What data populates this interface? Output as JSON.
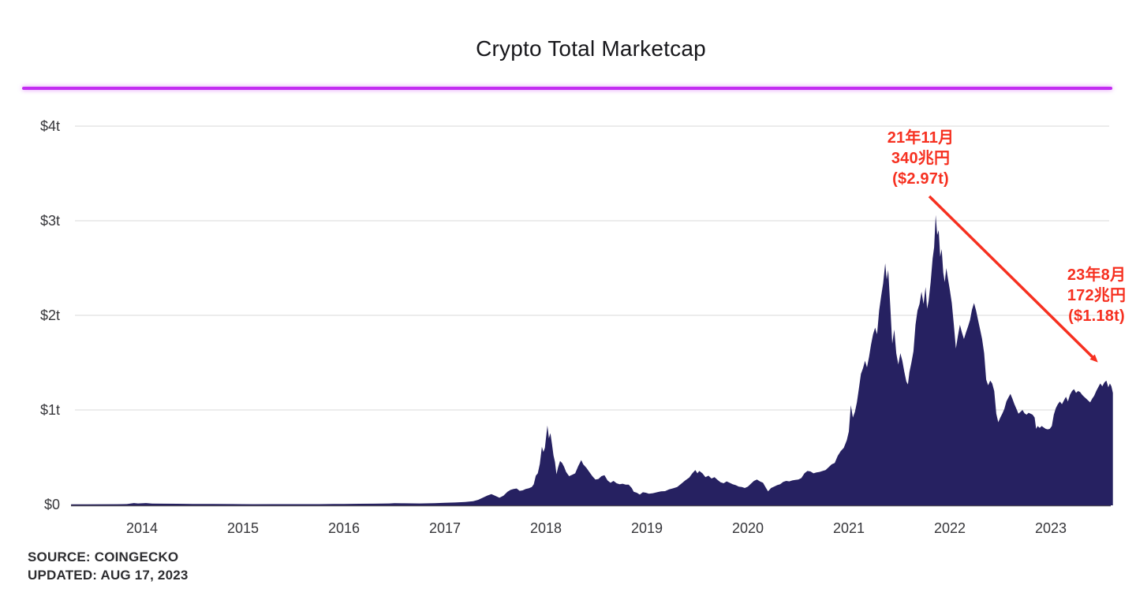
{
  "header": {
    "title": "Crypto Total Marketcap"
  },
  "footer": {
    "source": "SOURCE: COINGECKO",
    "updated": "UPDATED: AUG 17, 2023"
  },
  "chart_data": {
    "type": "area",
    "title": "Crypto Total Marketcap",
    "unit": "USD trillions",
    "x_range": [
      2013.3,
      2023.62
    ],
    "ylim": [
      0,
      4
    ],
    "grid": "horizontal",
    "y_ticks": {
      "labels": [
        "$0",
        "$1t",
        "$2t",
        "$3t",
        "$4t"
      ],
      "values": [
        0,
        1,
        2,
        3,
        4
      ]
    },
    "x_ticks": [
      2014,
      2015,
      2016,
      2017,
      2018,
      2019,
      2020,
      2021,
      2022,
      2023
    ],
    "colors": {
      "area": "#262161",
      "accent_line": "#c32cf2",
      "annotation": "#f63020",
      "gridline": "#ececec",
      "baseline": "#4e4954"
    },
    "annotations": [
      {
        "lines": [
          "21年11月",
          "340兆円",
          "($2.97t)"
        ]
      },
      {
        "lines": [
          "23年8月",
          "172兆円",
          "($1.18t)"
        ]
      }
    ],
    "series": [
      {
        "name": "Crypto total market cap ($ trillions)",
        "points": [
          [
            2013.3,
            0.001
          ],
          [
            2013.45,
            0.0012
          ],
          [
            2013.6,
            0.0015
          ],
          [
            2013.75,
            0.003
          ],
          [
            2013.85,
            0.005
          ],
          [
            2013.92,
            0.016
          ],
          [
            2013.96,
            0.012
          ],
          [
            2014.0,
            0.013
          ],
          [
            2014.04,
            0.016
          ],
          [
            2014.1,
            0.01
          ],
          [
            2014.2,
            0.009
          ],
          [
            2014.35,
            0.008
          ],
          [
            2014.5,
            0.007
          ],
          [
            2014.7,
            0.006
          ],
          [
            2014.9,
            0.005
          ],
          [
            2015.0,
            0.0045
          ],
          [
            2015.1,
            0.0035
          ],
          [
            2015.3,
            0.004
          ],
          [
            2015.5,
            0.004
          ],
          [
            2015.75,
            0.0045
          ],
          [
            2015.9,
            0.006
          ],
          [
            2016.0,
            0.007
          ],
          [
            2016.15,
            0.008
          ],
          [
            2016.3,
            0.009
          ],
          [
            2016.45,
            0.012
          ],
          [
            2016.5,
            0.014
          ],
          [
            2016.6,
            0.013
          ],
          [
            2016.75,
            0.012
          ],
          [
            2016.9,
            0.014
          ],
          [
            2017.0,
            0.018
          ],
          [
            2017.1,
            0.022
          ],
          [
            2017.2,
            0.027
          ],
          [
            2017.28,
            0.035
          ],
          [
            2017.33,
            0.05
          ],
          [
            2017.38,
            0.075
          ],
          [
            2017.42,
            0.095
          ],
          [
            2017.46,
            0.11
          ],
          [
            2017.5,
            0.092
          ],
          [
            2017.54,
            0.072
          ],
          [
            2017.58,
            0.093
          ],
          [
            2017.62,
            0.135
          ],
          [
            2017.65,
            0.155
          ],
          [
            2017.68,
            0.165
          ],
          [
            2017.71,
            0.17
          ],
          [
            2017.74,
            0.145
          ],
          [
            2017.77,
            0.15
          ],
          [
            2017.8,
            0.165
          ],
          [
            2017.83,
            0.172
          ],
          [
            2017.86,
            0.185
          ],
          [
            2017.88,
            0.215
          ],
          [
            2017.9,
            0.305
          ],
          [
            2017.92,
            0.33
          ],
          [
            2017.94,
            0.43
          ],
          [
            2017.96,
            0.61
          ],
          [
            2017.975,
            0.555
          ],
          [
            2017.99,
            0.6
          ],
          [
            2018.015,
            0.835
          ],
          [
            2018.03,
            0.7
          ],
          [
            2018.045,
            0.755
          ],
          [
            2018.06,
            0.64
          ],
          [
            2018.075,
            0.52
          ],
          [
            2018.09,
            0.45
          ],
          [
            2018.105,
            0.32
          ],
          [
            2018.12,
            0.39
          ],
          [
            2018.14,
            0.46
          ],
          [
            2018.16,
            0.44
          ],
          [
            2018.18,
            0.4
          ],
          [
            2018.2,
            0.345
          ],
          [
            2018.23,
            0.3
          ],
          [
            2018.26,
            0.315
          ],
          [
            2018.29,
            0.33
          ],
          [
            2018.32,
            0.405
          ],
          [
            2018.35,
            0.47
          ],
          [
            2018.37,
            0.425
          ],
          [
            2018.4,
            0.39
          ],
          [
            2018.43,
            0.345
          ],
          [
            2018.46,
            0.3
          ],
          [
            2018.49,
            0.265
          ],
          [
            2018.52,
            0.27
          ],
          [
            2018.55,
            0.3
          ],
          [
            2018.58,
            0.31
          ],
          [
            2018.61,
            0.255
          ],
          [
            2018.64,
            0.23
          ],
          [
            2018.67,
            0.25
          ],
          [
            2018.7,
            0.225
          ],
          [
            2018.73,
            0.215
          ],
          [
            2018.76,
            0.22
          ],
          [
            2018.79,
            0.21
          ],
          [
            2018.82,
            0.21
          ],
          [
            2018.85,
            0.175
          ],
          [
            2018.87,
            0.135
          ],
          [
            2018.9,
            0.125
          ],
          [
            2018.93,
            0.105
          ],
          [
            2018.96,
            0.13
          ],
          [
            2018.99,
            0.125
          ],
          [
            2019.02,
            0.115
          ],
          [
            2019.06,
            0.12
          ],
          [
            2019.1,
            0.13
          ],
          [
            2019.14,
            0.14
          ],
          [
            2019.18,
            0.142
          ],
          [
            2019.22,
            0.16
          ],
          [
            2019.26,
            0.172
          ],
          [
            2019.3,
            0.185
          ],
          [
            2019.34,
            0.22
          ],
          [
            2019.38,
            0.255
          ],
          [
            2019.42,
            0.285
          ],
          [
            2019.45,
            0.33
          ],
          [
            2019.48,
            0.365
          ],
          [
            2019.5,
            0.33
          ],
          [
            2019.52,
            0.355
          ],
          [
            2019.55,
            0.33
          ],
          [
            2019.58,
            0.29
          ],
          [
            2019.61,
            0.305
          ],
          [
            2019.64,
            0.275
          ],
          [
            2019.67,
            0.29
          ],
          [
            2019.7,
            0.26
          ],
          [
            2019.73,
            0.235
          ],
          [
            2019.76,
            0.225
          ],
          [
            2019.79,
            0.245
          ],
          [
            2019.82,
            0.23
          ],
          [
            2019.85,
            0.215
          ],
          [
            2019.88,
            0.205
          ],
          [
            2019.91,
            0.19
          ],
          [
            2019.94,
            0.185
          ],
          [
            2019.97,
            0.175
          ],
          [
            2020.0,
            0.19
          ],
          [
            2020.03,
            0.22
          ],
          [
            2020.06,
            0.25
          ],
          [
            2020.09,
            0.265
          ],
          [
            2020.12,
            0.245
          ],
          [
            2020.15,
            0.23
          ],
          [
            2020.18,
            0.175
          ],
          [
            2020.2,
            0.14
          ],
          [
            2020.23,
            0.175
          ],
          [
            2020.26,
            0.19
          ],
          [
            2020.29,
            0.205
          ],
          [
            2020.32,
            0.215
          ],
          [
            2020.35,
            0.24
          ],
          [
            2020.38,
            0.25
          ],
          [
            2020.41,
            0.245
          ],
          [
            2020.44,
            0.255
          ],
          [
            2020.47,
            0.26
          ],
          [
            2020.5,
            0.265
          ],
          [
            2020.53,
            0.28
          ],
          [
            2020.56,
            0.33
          ],
          [
            2020.59,
            0.355
          ],
          [
            2020.62,
            0.35
          ],
          [
            2020.65,
            0.33
          ],
          [
            2020.68,
            0.34
          ],
          [
            2020.71,
            0.345
          ],
          [
            2020.74,
            0.355
          ],
          [
            2020.77,
            0.365
          ],
          [
            2020.8,
            0.395
          ],
          [
            2020.83,
            0.425
          ],
          [
            2020.86,
            0.44
          ],
          [
            2020.89,
            0.515
          ],
          [
            2020.92,
            0.565
          ],
          [
            2020.95,
            0.6
          ],
          [
            2020.98,
            0.68
          ],
          [
            2021.0,
            0.772
          ],
          [
            2021.02,
            1.05
          ],
          [
            2021.04,
            0.92
          ],
          [
            2021.06,
            0.98
          ],
          [
            2021.08,
            1.08
          ],
          [
            2021.1,
            1.23
          ],
          [
            2021.12,
            1.38
          ],
          [
            2021.14,
            1.44
          ],
          [
            2021.16,
            1.52
          ],
          [
            2021.18,
            1.45
          ],
          [
            2021.2,
            1.56
          ],
          [
            2021.22,
            1.69
          ],
          [
            2021.24,
            1.8
          ],
          [
            2021.26,
            1.87
          ],
          [
            2021.28,
            1.8
          ],
          [
            2021.3,
            2.05
          ],
          [
            2021.32,
            2.2
          ],
          [
            2021.34,
            2.34
          ],
          [
            2021.36,
            2.55
          ],
          [
            2021.375,
            2.38
          ],
          [
            2021.39,
            2.48
          ],
          [
            2021.41,
            2.1
          ],
          [
            2021.43,
            1.7
          ],
          [
            2021.45,
            1.85
          ],
          [
            2021.47,
            1.6
          ],
          [
            2021.49,
            1.48
          ],
          [
            2021.51,
            1.6
          ],
          [
            2021.53,
            1.52
          ],
          [
            2021.55,
            1.4
          ],
          [
            2021.57,
            1.3
          ],
          [
            2021.585,
            1.27
          ],
          [
            2021.6,
            1.4
          ],
          [
            2021.62,
            1.5
          ],
          [
            2021.64,
            1.62
          ],
          [
            2021.66,
            1.9
          ],
          [
            2021.68,
            2.05
          ],
          [
            2021.7,
            2.12
          ],
          [
            2021.72,
            2.25
          ],
          [
            2021.74,
            2.12
          ],
          [
            2021.76,
            2.3
          ],
          [
            2021.775,
            2.07
          ],
          [
            2021.79,
            2.15
          ],
          [
            2021.81,
            2.35
          ],
          [
            2021.83,
            2.6
          ],
          [
            2021.845,
            2.72
          ],
          [
            2021.86,
            3.06
          ],
          [
            2021.875,
            2.85
          ],
          [
            2021.89,
            2.9
          ],
          [
            2021.905,
            2.62
          ],
          [
            2021.92,
            2.7
          ],
          [
            2021.935,
            2.45
          ],
          [
            2021.95,
            2.35
          ],
          [
            2021.965,
            2.5
          ],
          [
            2021.98,
            2.4
          ],
          [
            2022.0,
            2.27
          ],
          [
            2022.02,
            2.13
          ],
          [
            2022.04,
            1.9
          ],
          [
            2022.06,
            1.65
          ],
          [
            2022.08,
            1.78
          ],
          [
            2022.1,
            1.9
          ],
          [
            2022.12,
            1.82
          ],
          [
            2022.14,
            1.75
          ],
          [
            2022.16,
            1.82
          ],
          [
            2022.18,
            1.88
          ],
          [
            2022.2,
            1.95
          ],
          [
            2022.22,
            2.06
          ],
          [
            2022.24,
            2.13
          ],
          [
            2022.26,
            2.05
          ],
          [
            2022.28,
            1.95
          ],
          [
            2022.3,
            1.85
          ],
          [
            2022.32,
            1.75
          ],
          [
            2022.34,
            1.6
          ],
          [
            2022.36,
            1.32
          ],
          [
            2022.38,
            1.26
          ],
          [
            2022.4,
            1.31
          ],
          [
            2022.42,
            1.28
          ],
          [
            2022.44,
            1.2
          ],
          [
            2022.46,
            0.96
          ],
          [
            2022.48,
            0.87
          ],
          [
            2022.5,
            0.92
          ],
          [
            2022.52,
            0.96
          ],
          [
            2022.54,
            1.01
          ],
          [
            2022.56,
            1.09
          ],
          [
            2022.58,
            1.13
          ],
          [
            2022.6,
            1.17
          ],
          [
            2022.62,
            1.12
          ],
          [
            2022.64,
            1.06
          ],
          [
            2022.66,
            1.01
          ],
          [
            2022.68,
            0.96
          ],
          [
            2022.7,
            0.98
          ],
          [
            2022.72,
            1.0
          ],
          [
            2022.74,
            0.965
          ],
          [
            2022.76,
            0.95
          ],
          [
            2022.78,
            0.97
          ],
          [
            2022.8,
            0.96
          ],
          [
            2022.82,
            0.95
          ],
          [
            2022.84,
            0.92
          ],
          [
            2022.855,
            0.8
          ],
          [
            2022.87,
            0.83
          ],
          [
            2022.89,
            0.81
          ],
          [
            2022.91,
            0.83
          ],
          [
            2022.93,
            0.815
          ],
          [
            2022.95,
            0.8
          ],
          [
            2022.97,
            0.795
          ],
          [
            2022.99,
            0.8
          ],
          [
            2023.01,
            0.83
          ],
          [
            2023.03,
            0.95
          ],
          [
            2023.05,
            1.02
          ],
          [
            2023.07,
            1.06
          ],
          [
            2023.09,
            1.09
          ],
          [
            2023.11,
            1.06
          ],
          [
            2023.13,
            1.1
          ],
          [
            2023.15,
            1.14
          ],
          [
            2023.17,
            1.09
          ],
          [
            2023.19,
            1.16
          ],
          [
            2023.21,
            1.2
          ],
          [
            2023.23,
            1.22
          ],
          [
            2023.25,
            1.18
          ],
          [
            2023.27,
            1.2
          ],
          [
            2023.29,
            1.19
          ],
          [
            2023.31,
            1.16
          ],
          [
            2023.33,
            1.14
          ],
          [
            2023.35,
            1.12
          ],
          [
            2023.37,
            1.1
          ],
          [
            2023.39,
            1.08
          ],
          [
            2023.41,
            1.12
          ],
          [
            2023.43,
            1.15
          ],
          [
            2023.45,
            1.2
          ],
          [
            2023.47,
            1.24
          ],
          [
            2023.49,
            1.28
          ],
          [
            2023.51,
            1.25
          ],
          [
            2023.53,
            1.29
          ],
          [
            2023.55,
            1.31
          ],
          [
            2023.57,
            1.24
          ],
          [
            2023.585,
            1.28
          ],
          [
            2023.6,
            1.25
          ],
          [
            2023.615,
            1.18
          ]
        ]
      }
    ]
  }
}
